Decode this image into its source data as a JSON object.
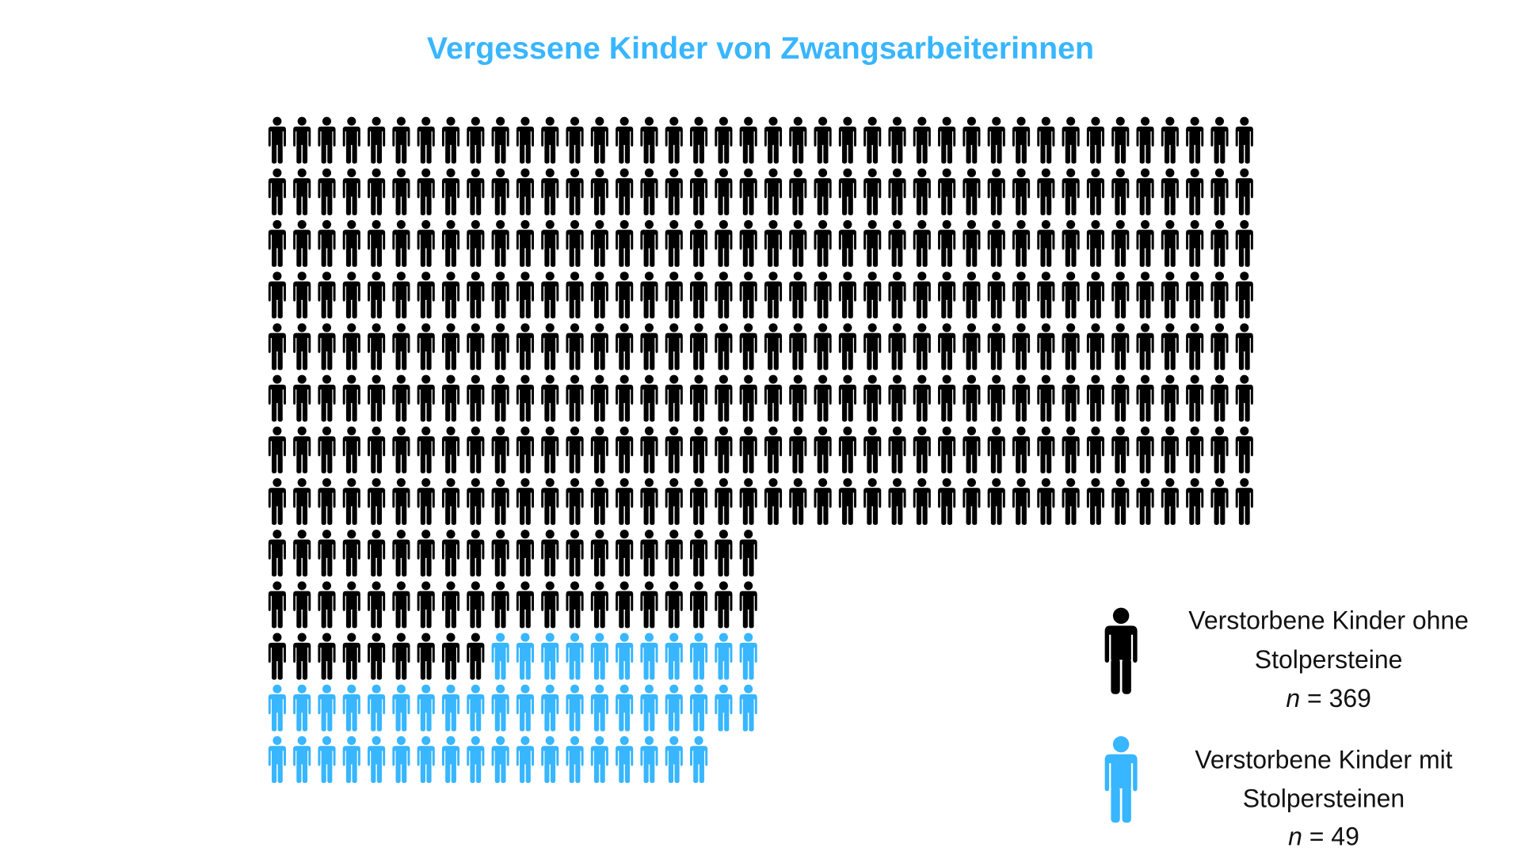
{
  "chart_data": {
    "type": "pictogram",
    "title": "Vergessene Kinder von Zwangsarbeiterinnen",
    "columns": 40,
    "fill_order": "row-major; rows 1-8 with 40 icons, then rows with 20 icons",
    "series": [
      {
        "name": "Verstorbene Kinder ohne Stolpersteine",
        "legend_lines": [
          "Verstorbene Kinder ohne",
          "Stolpersteine"
        ],
        "n_label": "n",
        "n_value": "= 369",
        "value": 369,
        "color": "#000000"
      },
      {
        "name": "Verstorbene Kinder mit Stolpersteinen",
        "legend_lines": [
          "Verstorbene Kinder mit",
          "Stolpersteinen"
        ],
        "n_label": "n",
        "n_value": "= 49",
        "value": 49,
        "color": "#38b6ff"
      }
    ],
    "legend_placement": "bottom-right",
    "icon": "person-icon"
  }
}
